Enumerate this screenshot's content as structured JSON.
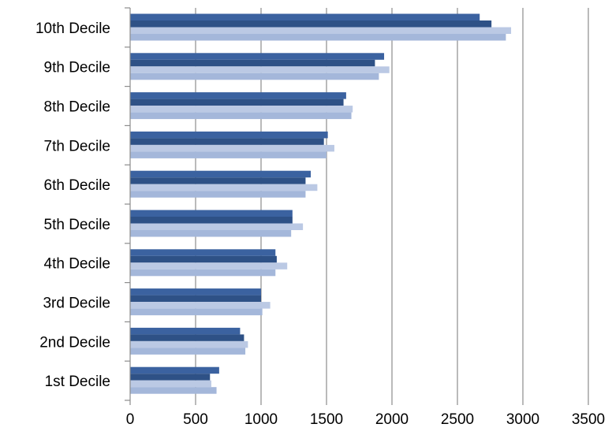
{
  "chart_data": {
    "type": "bar",
    "orientation": "horizontal",
    "title": "",
    "xlabel": "",
    "ylabel": "",
    "xlim": [
      0,
      3500
    ],
    "x_ticks": [
      "0",
      "500",
      "1000",
      "1500",
      "2000",
      "2500",
      "3000",
      "3500"
    ],
    "grid": "vertical",
    "legend": "none",
    "categories": [
      "1st Decile",
      "2nd Decile",
      "3rd Decile",
      "4th Decile",
      "5th Decile",
      "6th Decile",
      "7th Decile",
      "8th Decile",
      "9th Decile",
      "10th Decile"
    ],
    "series": [
      {
        "color": "#3B62A0",
        "values": [
          680,
          840,
          1000,
          1110,
          1240,
          1380,
          1510,
          1650,
          1940,
          2670
        ]
      },
      {
        "color": "#2E5186",
        "values": [
          610,
          870,
          1000,
          1120,
          1240,
          1340,
          1480,
          1630,
          1870,
          2760
        ]
      },
      {
        "color": "#BBC9E4",
        "values": [
          620,
          900,
          1070,
          1200,
          1320,
          1430,
          1560,
          1700,
          1980,
          2910
        ]
      },
      {
        "color": "#A4B7DA",
        "values": [
          660,
          880,
          1010,
          1110,
          1230,
          1340,
          1500,
          1690,
          1900,
          2870
        ]
      }
    ]
  }
}
